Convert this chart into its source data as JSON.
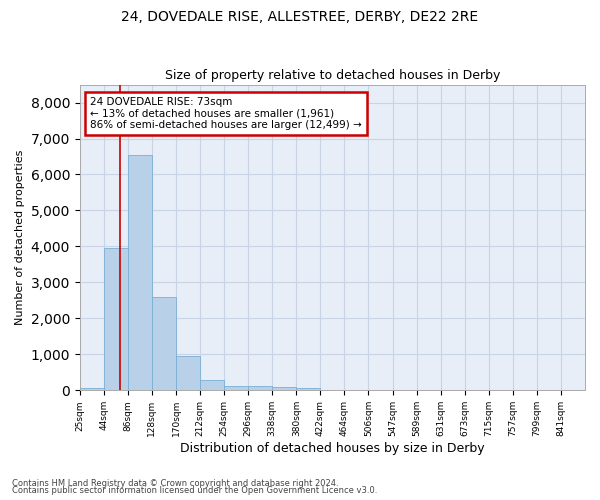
{
  "title1": "24, DOVEDALE RISE, ALLESTREE, DERBY, DE22 2RE",
  "title2": "Size of property relative to detached houses in Derby",
  "xlabel": "Distribution of detached houses by size in Derby",
  "ylabel": "Number of detached properties",
  "footer1": "Contains HM Land Registry data © Crown copyright and database right 2024.",
  "footer2": "Contains public sector information licensed under the Open Government Licence v3.0.",
  "annotation_line1": "24 DOVEDALE RISE: 73sqm",
  "annotation_line2": "← 13% of detached houses are smaller (1,961)",
  "annotation_line3": "86% of semi-detached houses are larger (12,499) →",
  "property_size_bin": 1,
  "bar_color": "#b8d0e8",
  "bar_edge_color": "#7aafd4",
  "grid_color": "#c8d4e4",
  "bg_color": "#e8eef8",
  "annotation_box_color": "#ffffff",
  "annotation_box_edge": "#cc0000",
  "categories": [
    "25sqm",
    "44sqm",
    "86sqm",
    "128sqm",
    "170sqm",
    "212sqm",
    "254sqm",
    "296sqm",
    "338sqm",
    "380sqm",
    "422sqm",
    "464sqm",
    "506sqm",
    "547sqm",
    "589sqm",
    "631sqm",
    "673sqm",
    "715sqm",
    "757sqm",
    "799sqm",
    "841sqm"
  ],
  "values": [
    75,
    3950,
    6550,
    2600,
    950,
    300,
    115,
    110,
    85,
    55,
    0,
    0,
    0,
    0,
    0,
    0,
    0,
    0,
    0,
    0,
    0
  ],
  "ylim": [
    0,
    8500
  ],
  "yticks": [
    0,
    1000,
    2000,
    3000,
    4000,
    5000,
    6000,
    7000,
    8000
  ]
}
